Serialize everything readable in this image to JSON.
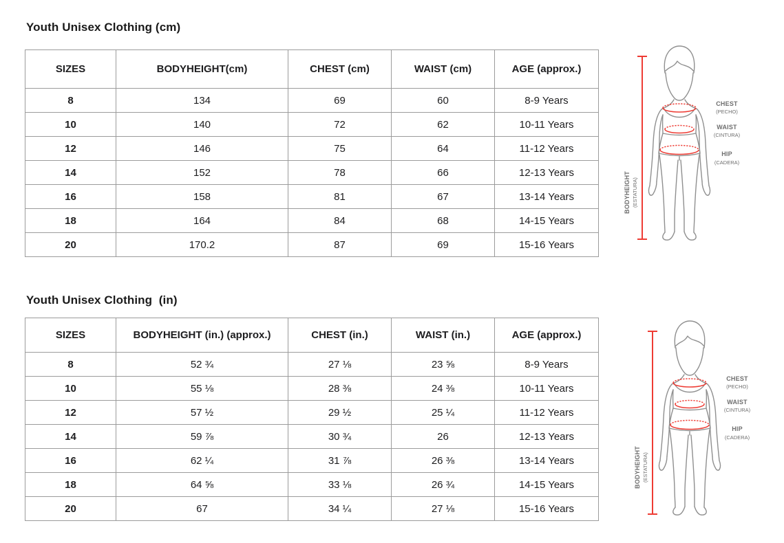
{
  "page": {
    "background": "#ffffff"
  },
  "colors": {
    "accent_red": "#ee3b33",
    "figure_outline": "#8f8f8f",
    "figure_label_gray": "#6e6e6e",
    "table_border_gray": "#9b9b9b",
    "text": "#1d1d1f"
  },
  "sections": [
    {
      "id": "cm",
      "title": "Youth Unisex Clothing (cm)",
      "table": {
        "headers": [
          "SIZES",
          "BODYHEIGHT(cm)",
          "CHEST (cm)",
          "WAIST (cm)",
          "AGE (approx.)"
        ],
        "rows": [
          [
            "8",
            "134",
            "69",
            "60",
            "8-9 Years"
          ],
          [
            "10",
            "140",
            "72",
            "62",
            "10-11 Years"
          ],
          [
            "12",
            "146",
            "75",
            "64",
            "11-12 Years"
          ],
          [
            "14",
            "152",
            "78",
            "66",
            "12-13 Years"
          ],
          [
            "16",
            "158",
            "81",
            "67",
            "13-14 Years"
          ],
          [
            "18",
            "164",
            "84",
            "68",
            "14-15 Years"
          ],
          [
            "20",
            "170.2",
            "87",
            "69",
            "15-16 Years"
          ]
        ]
      },
      "figure": {
        "bodyheight_label": "BODYHEIGHT",
        "bodyheight_sublabel": "(ESTATURA)",
        "chest_label": "CHEST",
        "chest_sublabel": "(PECHO)",
        "waist_label": "WAIST",
        "waist_sublabel": "(CINTURA)",
        "hip_label": "HIP",
        "hip_sublabel": "(CADERA)"
      }
    },
    {
      "id": "in",
      "title": "Youth Unisex Clothing  (in)",
      "table": {
        "headers": [
          "SIZES",
          "BODYHEIGHT (in.) (approx.)",
          "CHEST (in.)",
          "WAIST (in.)",
          "AGE (approx.)"
        ],
        "rows": [
          [
            "8",
            "52 ¾",
            "27 ⅛",
            "23 ⅝",
            "8-9 Years"
          ],
          [
            "10",
            "55 ⅛",
            "28 ⅜",
            "24 ⅜",
            "10-11 Years"
          ],
          [
            "12",
            "57 ½",
            "29 ½",
            "25 ¼",
            "11-12 Years"
          ],
          [
            "14",
            "59 ⅞",
            "30 ¾",
            "26",
            "12-13 Years"
          ],
          [
            "16",
            "62 ¼",
            "31 ⅞",
            "26 ⅜",
            "13-14 Years"
          ],
          [
            "18",
            "64 ⅝",
            "33 ⅛",
            "26 ¾",
            "14-15 Years"
          ],
          [
            "20",
            "67",
            "34 ¼",
            "27 ⅛",
            "15-16 Years"
          ]
        ]
      },
      "figure": {
        "bodyheight_label": "BODYHEIGHT",
        "bodyheight_sublabel": "(ESTATURA)",
        "chest_label": "CHEST",
        "chest_sublabel": "(PECHO)",
        "waist_label": "WAIST",
        "waist_sublabel": "(CINTURA)",
        "hip_label": "HIP",
        "hip_sublabel": "(CADERA)"
      }
    }
  ]
}
